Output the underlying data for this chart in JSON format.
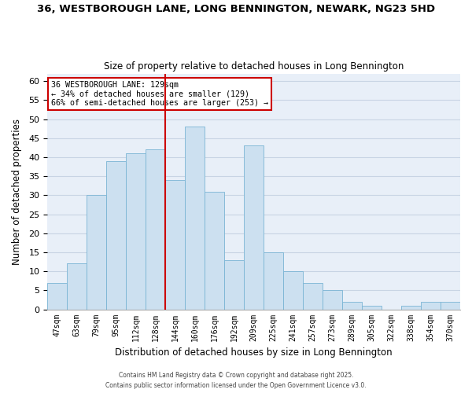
{
  "title1": "36, WESTBOROUGH LANE, LONG BENNINGTON, NEWARK, NG23 5HD",
  "title2": "Size of property relative to detached houses in Long Bennington",
  "xlabel": "Distribution of detached houses by size in Long Bennington",
  "ylabel": "Number of detached properties",
  "bar_color": "#cce0f0",
  "bar_edgecolor": "#7ab4d4",
  "plot_bg_color": "#e8eff8",
  "background_color": "#ffffff",
  "grid_color": "#c8d4e4",
  "categories": [
    "47sqm",
    "63sqm",
    "79sqm",
    "95sqm",
    "112sqm",
    "128sqm",
    "144sqm",
    "160sqm",
    "176sqm",
    "192sqm",
    "209sqm",
    "225sqm",
    "241sqm",
    "257sqm",
    "273sqm",
    "289sqm",
    "305sqm",
    "322sqm",
    "338sqm",
    "354sqm",
    "370sqm"
  ],
  "values": [
    7,
    12,
    30,
    39,
    41,
    42,
    34,
    48,
    31,
    13,
    43,
    15,
    10,
    7,
    5,
    2,
    1,
    0,
    1,
    2,
    2
  ],
  "vline_x_idx": 5.5,
  "vline_color": "#cc0000",
  "annotation_text": "36 WESTBOROUGH LANE: 129sqm\n← 34% of detached houses are smaller (129)\n66% of semi-detached houses are larger (253) →",
  "annotation_box_edgecolor": "#cc0000",
  "ylim": [
    0,
    62
  ],
  "yticks": [
    0,
    5,
    10,
    15,
    20,
    25,
    30,
    35,
    40,
    45,
    50,
    55,
    60
  ],
  "footnote1": "Contains HM Land Registry data © Crown copyright and database right 2025.",
  "footnote2": "Contains public sector information licensed under the Open Government Licence v3.0."
}
